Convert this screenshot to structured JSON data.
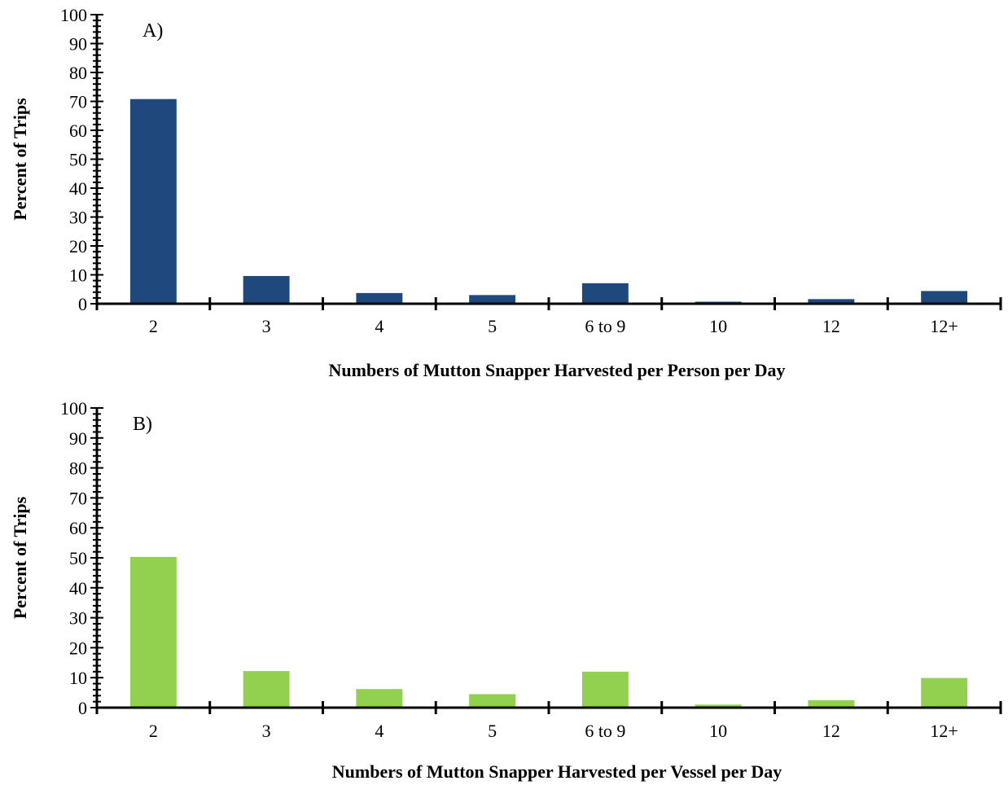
{
  "chart_data": [
    {
      "type": "bar",
      "panel_label": "A)",
      "categories": [
        "2",
        "3",
        "4",
        "5",
        "6 to 9",
        "10",
        "12",
        "12+"
      ],
      "values": [
        70.8,
        9.6,
        3.7,
        3.0,
        7.1,
        0.7,
        1.6,
        4.4
      ],
      "xlabel": "Numbers of Mutton Snapper Harvested per Person per Day",
      "ylabel": "Percent of Trips",
      "ylim": [
        0,
        100
      ],
      "yticks": [
        "0",
        "10",
        "20",
        "30",
        "40",
        "50",
        "60",
        "70",
        "80",
        "90",
        "100"
      ],
      "bar_color": "#1f497d",
      "grid": false,
      "legend": false
    },
    {
      "type": "bar",
      "panel_label": "B)",
      "categories": [
        "2",
        "3",
        "4",
        "5",
        "6 to 9",
        "10",
        "12",
        "12+"
      ],
      "values": [
        50.3,
        12.2,
        6.2,
        4.5,
        12.0,
        1.0,
        2.5,
        9.9
      ],
      "xlabel": "Numbers of Mutton Snapper Harvested per Vessel per Day",
      "ylabel": "Percent of Trips",
      "ylim": [
        0,
        100
      ],
      "yticks": [
        "0",
        "10",
        "20",
        "30",
        "40",
        "50",
        "60",
        "70",
        "80",
        "90",
        "100"
      ],
      "bar_color": "#92d050",
      "grid": false,
      "legend": false
    }
  ]
}
